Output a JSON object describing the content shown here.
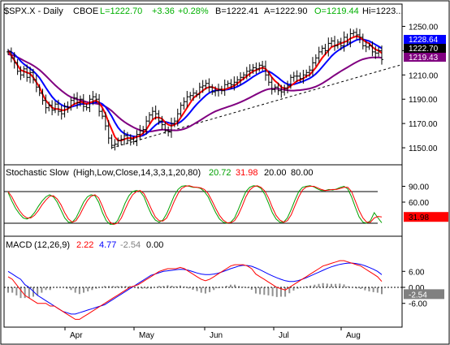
{
  "header": {
    "symbol": "$SPX.X - Daily",
    "exchange": "CBOE",
    "last": "L=1222.70",
    "change": "+3.36",
    "change_pct": "+0.28%",
    "bid": "B=1222.41",
    "ask": "A=1222.90",
    "open": "O=1219.44",
    "high": "Hi=1223..."
  },
  "colors": {
    "price": "#000000",
    "up_text": "#00b000",
    "ma_fast": "#ff0000",
    "ma_mid": "#0000ff",
    "ma_slow": "#800080",
    "stoch_k": "#00a000",
    "stoch_d": "#ff0000",
    "macd_line": "#ff0000",
    "signal_line": "#0000ff",
    "histogram": "#909090",
    "trendline": "#000000",
    "tag_bg": "#0000ff",
    "stoch_tag_bg": "#ff0000"
  },
  "x_axis": {
    "labels": [
      "Apr",
      "May",
      "Jun",
      "Jul",
      "Aug"
    ]
  },
  "chart_data": [
    {
      "type": "ohlc",
      "panel": "price",
      "ylim": [
        1138,
        1257
      ],
      "yticks": [
        1150.0,
        1170.0,
        1190.0,
        1210.0,
        1230.0,
        1250.0
      ],
      "ytick_labels": [
        "1150.00",
        "1170.00",
        "1190.00",
        "1210.00",
        "1230.00",
        "1250.00"
      ],
      "tags": [
        {
          "label": "1228.64",
          "value": 1228.64,
          "color": "#0000ff",
          "text_color": "#ffffff"
        },
        {
          "label": "1222.70",
          "value": 1222.7,
          "color": "#000000",
          "text_color": "#ffffff"
        },
        {
          "label": "1219.43",
          "value": 1219.43,
          "color": "#800080",
          "text_color": "#ffffff"
        }
      ],
      "close": [
        1229,
        1224,
        1220,
        1213,
        1210,
        1215,
        1208,
        1212,
        1206,
        1200,
        1195,
        1189,
        1183,
        1185,
        1181,
        1186,
        1180,
        1178,
        1184,
        1183,
        1189,
        1191,
        1187,
        1190,
        1184,
        1183,
        1190,
        1192,
        1190,
        1180,
        1176,
        1168,
        1158,
        1152,
        1153,
        1156,
        1157,
        1160,
        1156,
        1157,
        1155,
        1161,
        1164,
        1165,
        1172,
        1177,
        1180,
        1178,
        1172,
        1169,
        1164,
        1163,
        1170,
        1172,
        1178,
        1185,
        1188,
        1192,
        1193,
        1195,
        1194,
        1200,
        1201,
        1203,
        1200,
        1196,
        1197,
        1198,
        1197,
        1202,
        1203,
        1202,
        1204,
        1206,
        1208,
        1210,
        1213,
        1214,
        1216,
        1215,
        1218,
        1217,
        1210,
        1204,
        1198,
        1200,
        1197,
        1196,
        1199,
        1201,
        1208,
        1209,
        1209,
        1207,
        1210,
        1212,
        1214,
        1220,
        1224,
        1229,
        1232,
        1230,
        1236,
        1238,
        1234,
        1237,
        1234,
        1241,
        1237,
        1244,
        1245,
        1243,
        1241,
        1234,
        1233,
        1234,
        1229,
        1228,
        1230,
        1222.7
      ],
      "ma_fast": [
        1230,
        1226,
        1222,
        1218,
        1214,
        1213,
        1212,
        1211,
        1208,
        1204,
        1200,
        1194,
        1189,
        1186,
        1183,
        1182,
        1182,
        1181,
        1181,
        1182,
        1184,
        1186,
        1187,
        1188,
        1187,
        1186,
        1187,
        1188,
        1189,
        1187,
        1183,
        1178,
        1171,
        1165,
        1159,
        1156,
        1156,
        1157,
        1158,
        1158,
        1158,
        1159,
        1160,
        1162,
        1165,
        1169,
        1173,
        1175,
        1175,
        1174,
        1171,
        1169,
        1168,
        1169,
        1171,
        1175,
        1179,
        1183,
        1187,
        1191,
        1193,
        1195,
        1197,
        1199,
        1200,
        1200,
        1199,
        1198,
        1198,
        1198,
        1199,
        1200,
        1201,
        1203,
        1205,
        1207,
        1209,
        1211,
        1213,
        1214,
        1215,
        1216,
        1215,
        1212,
        1208,
        1205,
        1203,
        1200,
        1199,
        1199,
        1201,
        1203,
        1205,
        1206,
        1207,
        1209,
        1210,
        1213,
        1216,
        1220,
        1224,
        1227,
        1230,
        1233,
        1234,
        1235,
        1236,
        1237,
        1238,
        1240,
        1241,
        1242,
        1241,
        1239,
        1237,
        1236,
        1233,
        1231,
        1230,
        1228
      ]
    },
    {
      "type": "line",
      "panel": "stochastic",
      "title": "Stochastic Slow",
      "params": "(High,Low,Close,14,3,3,1,20,80)",
      "values_text": [
        "20.72",
        "31.98",
        "20.00",
        "80.00"
      ],
      "ylim": [
        0,
        100
      ],
      "yticks": [
        20,
        60,
        90
      ],
      "ytick_labels": [
        "",
        "60.00",
        "90.00"
      ],
      "levels": [
        20,
        80
      ],
      "tag": {
        "label": "31.98",
        "value": 31.98,
        "color": "#ff0000",
        "text_color": "#000000"
      },
      "series": [
        {
          "name": "%K",
          "color": "#00a000",
          "values": [
            78,
            62,
            48,
            38,
            30,
            28,
            32,
            40,
            52,
            62,
            70,
            74,
            70,
            60,
            45,
            30,
            22,
            22,
            30,
            45,
            60,
            70,
            74,
            72,
            60,
            40,
            25,
            18,
            18,
            25,
            40,
            58,
            72,
            80,
            82,
            80,
            70,
            52,
            36,
            26,
            22,
            26,
            38,
            55,
            72,
            84,
            90,
            91,
            90,
            88,
            88,
            86,
            80,
            70,
            55,
            40,
            28,
            22,
            20,
            22,
            30,
            46,
            64,
            80,
            88,
            91,
            90,
            86,
            75,
            58,
            40,
            28,
            22,
            22,
            30,
            46,
            64,
            80,
            88,
            90,
            91,
            89,
            85,
            82,
            82,
            84,
            83,
            85,
            88,
            90,
            85,
            70,
            50,
            32,
            22,
            20,
            25,
            40,
            30,
            21
          ]
        },
        {
          "name": "%D",
          "color": "#ff0000",
          "values": [
            80,
            70,
            56,
            44,
            35,
            30,
            30,
            35,
            44,
            55,
            64,
            71,
            72,
            66,
            55,
            40,
            28,
            22,
            25,
            36,
            50,
            63,
            71,
            74,
            68,
            52,
            34,
            22,
            18,
            20,
            30,
            46,
            62,
            74,
            80,
            82,
            76,
            62,
            46,
            32,
            25,
            24,
            30,
            44,
            61,
            76,
            86,
            90,
            91,
            89,
            88,
            87,
            84,
            76,
            63,
            48,
            35,
            26,
            21,
            21,
            25,
            36,
            52,
            70,
            83,
            89,
            91,
            88,
            81,
            68,
            50,
            35,
            26,
            22,
            25,
            36,
            53,
            70,
            83,
            89,
            90,
            90,
            87,
            84,
            82,
            83,
            84,
            84,
            86,
            88,
            88,
            80,
            62,
            44,
            30,
            22,
            22,
            30,
            33,
            32
          ]
        }
      ]
    },
    {
      "type": "line+bar",
      "panel": "macd",
      "title": "MACD",
      "params": "(12,26,9)",
      "values_text": [
        "2.22",
        "4.77",
        "-2.54",
        "0.00"
      ],
      "ylim": [
        -14,
        14
      ],
      "yticks": [
        6,
        0,
        -6
      ],
      "ytick_labels": [
        "6.00",
        "0.00",
        "-6.00"
      ],
      "tag": {
        "label": "-2.54",
        "value": -2.54,
        "color": "#808080",
        "text_color": "#ffffff"
      },
      "series": [
        {
          "name": "MACD",
          "color": "#ff0000",
          "values": [
            4,
            3,
            1,
            -1,
            -3,
            -4,
            -5,
            -6,
            -6,
            -6,
            -7,
            -7,
            -8,
            -9,
            -10,
            -11,
            -12,
            -12,
            -11,
            -10,
            -9,
            -8,
            -7,
            -6,
            -5,
            -4,
            -3,
            -2,
            -1,
            0,
            0.5,
            1,
            2,
            3,
            4,
            5,
            6,
            6.5,
            7,
            7,
            7,
            7.5,
            7,
            6,
            5,
            4,
            3,
            2.5,
            3,
            4,
            5,
            6,
            7,
            8,
            8.5,
            8.5,
            8.5,
            8,
            7,
            5,
            4,
            3,
            2,
            1,
            0,
            -0.5,
            -1,
            0,
            1,
            2,
            3,
            4,
            5,
            6,
            7,
            8,
            8.5,
            9,
            9.5,
            10,
            10,
            9.5,
            9,
            8.5,
            8,
            7,
            6,
            5,
            4,
            2.22
          ]
        },
        {
          "name": "Signal",
          "color": "#0000ff",
          "values": [
            6,
            5,
            4,
            3,
            1,
            0,
            -1.5,
            -3,
            -4,
            -5,
            -6,
            -7,
            -8,
            -9,
            -9.5,
            -10,
            -10,
            -9.5,
            -9,
            -8.5,
            -8,
            -7.5,
            -7,
            -6.5,
            -5.5,
            -4.5,
            -3.5,
            -2.5,
            -1.5,
            -0.5,
            0.5,
            1.5,
            2.5,
            3.5,
            4.5,
            5,
            5.5,
            6,
            6.2,
            6.4,
            6.6,
            6.8,
            6.7,
            6.4,
            5.9,
            5.4,
            5,
            4.8,
            4.8,
            5,
            5.3,
            5.8,
            6.4,
            7,
            7.5,
            8,
            8.3,
            8.2,
            7.9,
            7.3,
            6.6,
            5.8,
            5,
            4.3,
            3.6,
            3,
            2.5,
            2.2,
            2.2,
            2.5,
            3,
            3.6,
            4.3,
            5,
            5.7,
            6.4,
            7.1,
            7.7,
            8.2,
            8.6,
            8.9,
            9.1,
            9.1,
            8.9,
            8.6,
            8.1,
            7.5,
            6.8,
            6,
            4.77
          ]
        }
      ]
    }
  ]
}
